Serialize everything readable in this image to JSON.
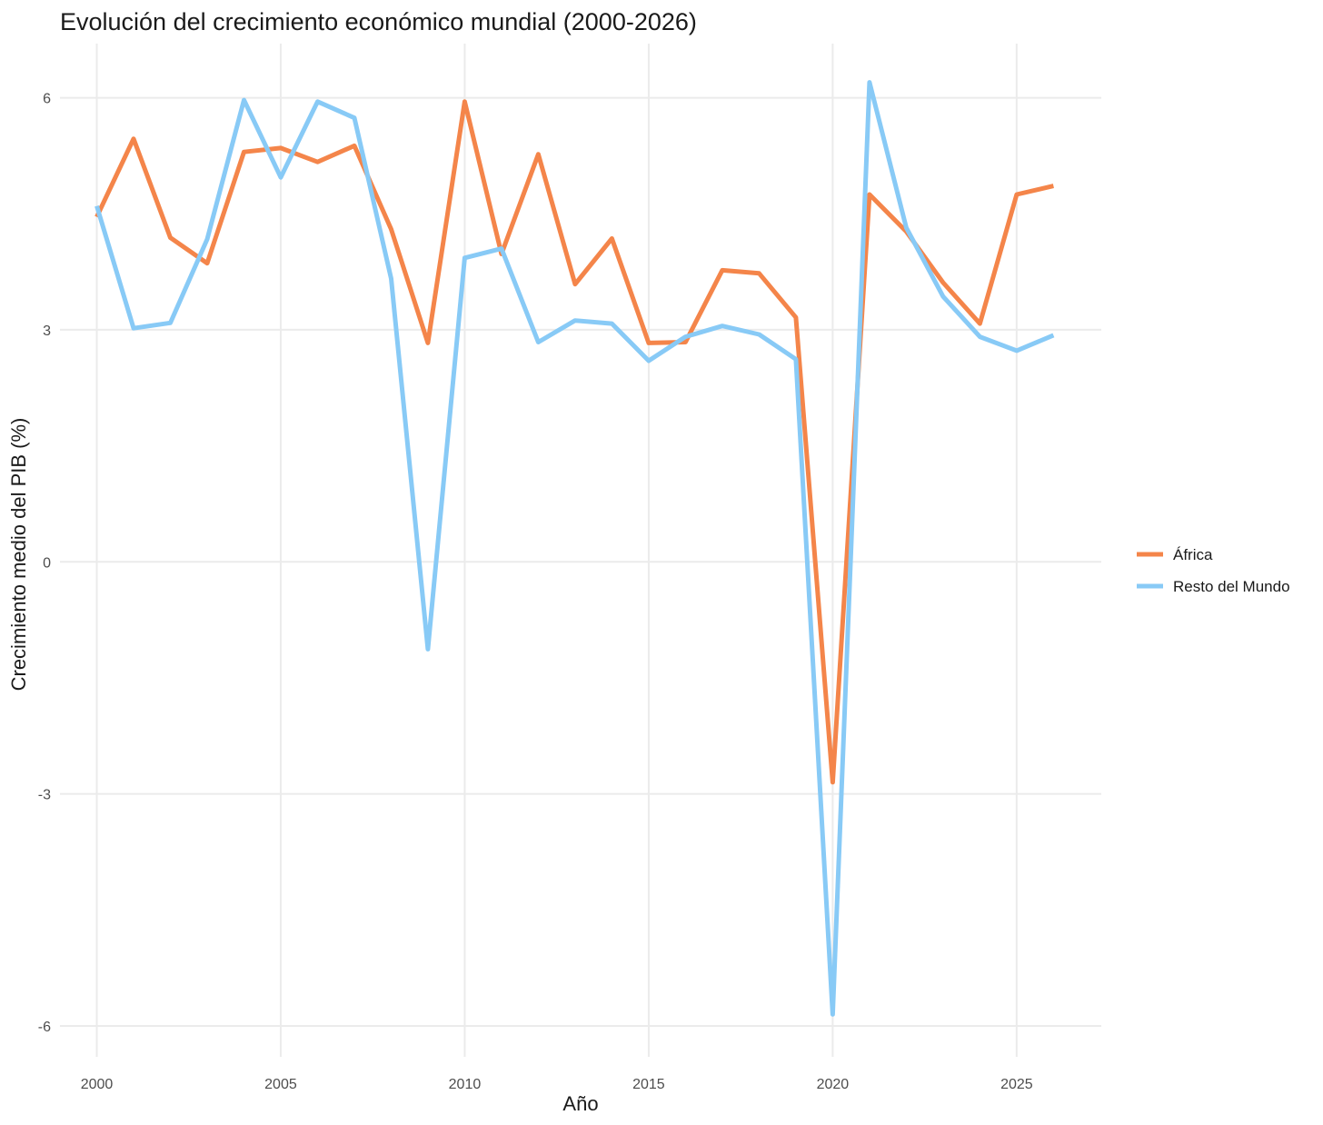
{
  "chart_data": {
    "type": "line",
    "title": "Evolución del crecimiento económico mundial (2000-2026)",
    "xlabel": "Año",
    "ylabel": "Crecimiento medio del PIB (%)",
    "xlim": [
      1999,
      2027.3
    ],
    "ylim": [
      -6.4,
      6.7
    ],
    "xticks": [
      2000,
      2005,
      2010,
      2015,
      2020,
      2025
    ],
    "yticks": [
      6,
      3,
      0,
      -3,
      -6
    ],
    "grid": true,
    "legend_position": "right",
    "x": [
      2000,
      2001,
      2002,
      2003,
      2004,
      2005,
      2006,
      2007,
      2008,
      2009,
      2010,
      2011,
      2012,
      2013,
      2014,
      2015,
      2016,
      2017,
      2018,
      2019,
      2020,
      2021,
      2022,
      2023,
      2024,
      2025,
      2026
    ],
    "series": [
      {
        "name": "África",
        "color": "#f4854a",
        "values": [
          4.46,
          5.47,
          4.19,
          3.86,
          5.3,
          5.35,
          5.17,
          5.38,
          4.3,
          2.83,
          5.95,
          3.98,
          5.27,
          3.59,
          4.18,
          2.83,
          2.84,
          3.77,
          3.73,
          3.16,
          -2.85,
          4.75,
          4.27,
          3.61,
          3.08,
          4.75,
          4.86
        ]
      },
      {
        "name": "Resto del Mundo",
        "color": "#88caf6",
        "values": [
          4.6,
          3.02,
          3.09,
          4.17,
          5.97,
          4.97,
          5.95,
          5.74,
          3.66,
          -1.13,
          3.93,
          4.05,
          2.84,
          3.12,
          3.08,
          2.6,
          2.91,
          3.05,
          2.94,
          2.62,
          -5.85,
          6.2,
          4.32,
          3.43,
          2.91,
          2.73,
          2.93
        ]
      }
    ]
  }
}
